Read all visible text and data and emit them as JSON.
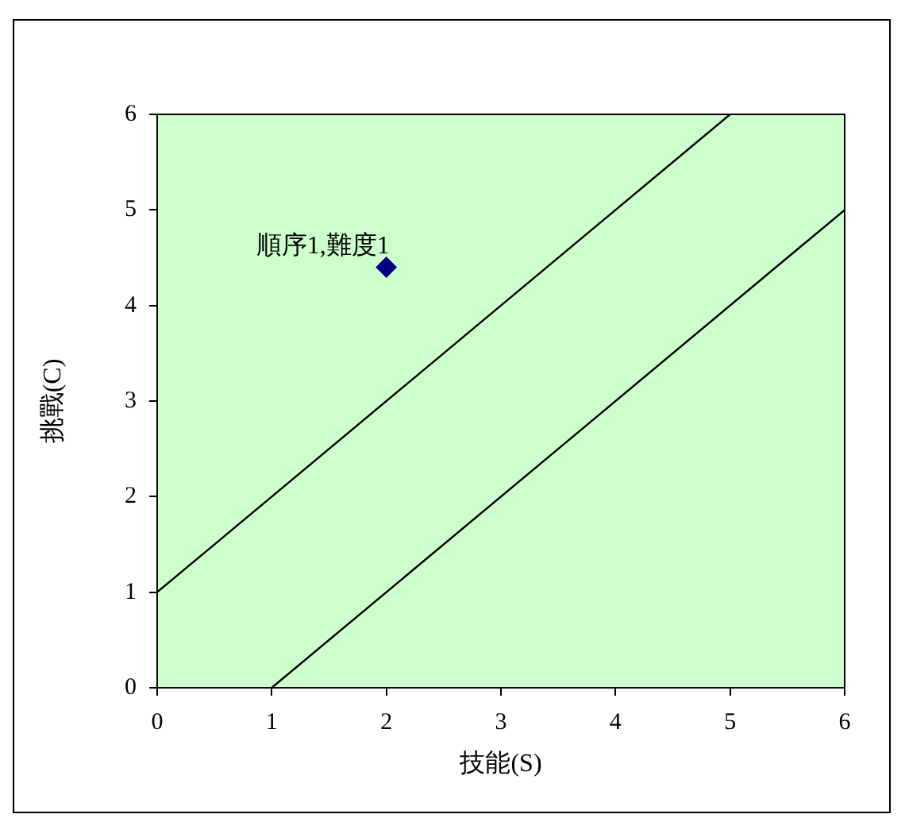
{
  "chart_data": {
    "type": "scatter",
    "xlabel": "技能(S)",
    "ylabel": "挑戰(C)",
    "xlim": [
      0,
      6
    ],
    "ylim": [
      0,
      6
    ],
    "xticks": [
      0,
      1,
      2,
      3,
      4,
      5,
      6
    ],
    "yticks": [
      0,
      1,
      2,
      3,
      4,
      5,
      6
    ],
    "grid": false,
    "legend": false,
    "series": [
      {
        "type": "scatter",
        "color": "#000080",
        "marker": "diamond",
        "x": [
          2
        ],
        "values": [
          4.4
        ]
      },
      {
        "type": "line",
        "color": "#000000",
        "marker": "none",
        "x": [
          0,
          5
        ],
        "values": [
          1,
          6
        ]
      },
      {
        "type": "line",
        "color": "#000000",
        "marker": "none",
        "x": [
          1,
          6
        ],
        "values": [
          0,
          5
        ]
      }
    ],
    "annotations": [
      {
        "text": "順序1,難度1",
        "x": 2,
        "y": 4.4
      }
    ]
  }
}
